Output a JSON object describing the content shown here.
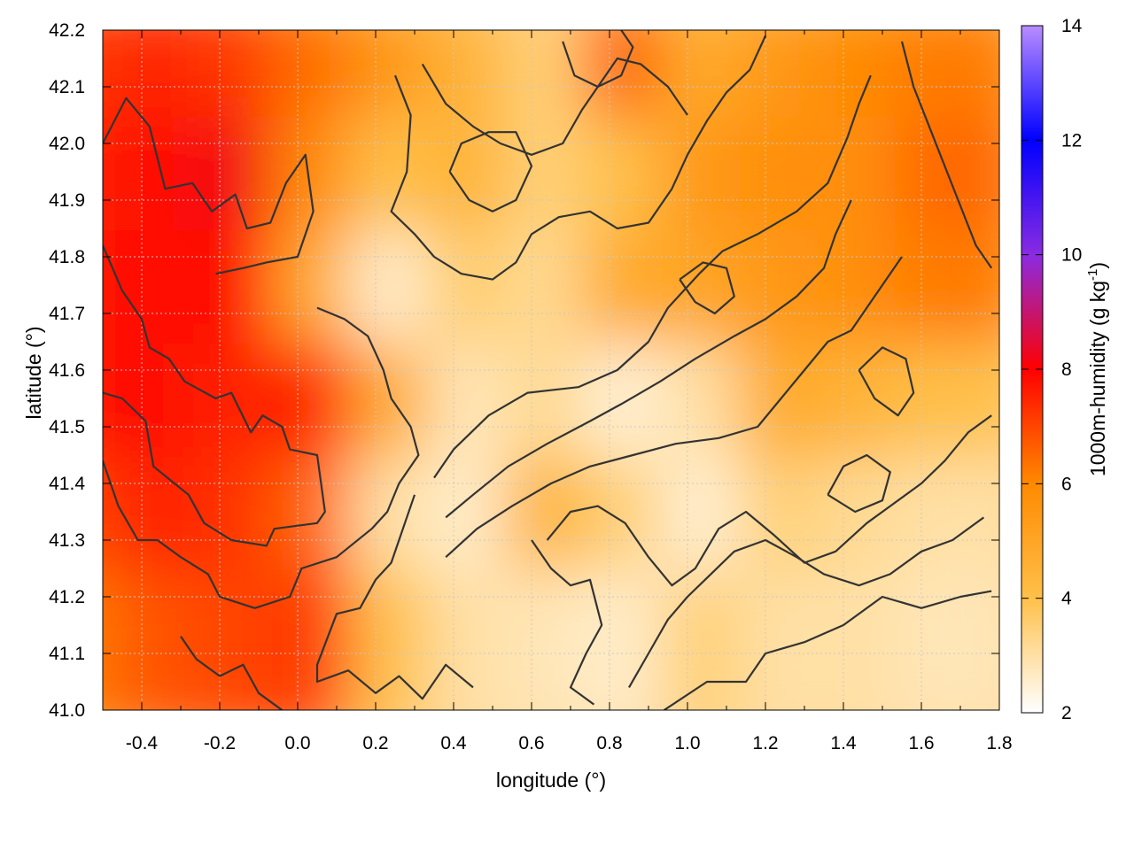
{
  "chart_data": {
    "type": "heatmap",
    "xlabel": "longitude (°)",
    "ylabel": "latitude (°)",
    "xlim": [
      -0.5,
      1.8
    ],
    "ylim": [
      41.0,
      42.2
    ],
    "x_ticks": [
      "-0.4",
      "-0.2",
      "0.0",
      "0.2",
      "0.4",
      "0.6",
      "0.8",
      "1.0",
      "1.2",
      "1.4",
      "1.6",
      "1.8"
    ],
    "x_tick_values": [
      -0.4,
      -0.2,
      0.0,
      0.2,
      0.4,
      0.6,
      0.8,
      1.0,
      1.2,
      1.4,
      1.6,
      1.8
    ],
    "y_ticks": [
      "41.0",
      "41.1",
      "41.2",
      "41.3",
      "41.4",
      "41.5",
      "41.6",
      "41.7",
      "41.8",
      "41.9",
      "42.0",
      "42.1",
      "42.2"
    ],
    "y_tick_values": [
      41.0,
      41.1,
      41.2,
      41.3,
      41.4,
      41.5,
      41.6,
      41.7,
      41.8,
      41.9,
      42.0,
      42.1,
      42.2
    ],
    "grid": true,
    "colorbar": {
      "label": "1000m-humidity (g kg-1)",
      "label_main": "1000m-humidity (g kg",
      "label_sup": "-1",
      "label_end": ")",
      "range": [
        2,
        14
      ],
      "ticks": [
        "2",
        "4",
        "6",
        "8",
        "10",
        "12",
        "14"
      ],
      "tick_values": [
        2,
        4,
        6,
        8,
        10,
        12,
        14
      ],
      "palette": [
        {
          "value": 2,
          "color": "#ffffff"
        },
        {
          "value": 4,
          "color": "#ffc04a"
        },
        {
          "value": 6,
          "color": "#ff8a00"
        },
        {
          "value": 8,
          "color": "#ff0000"
        },
        {
          "value": 10,
          "color": "#8a2be2"
        },
        {
          "value": 12,
          "color": "#0000ff"
        },
        {
          "value": 14,
          "color": "#b98cff"
        }
      ]
    },
    "humidity_field": {
      "x": [
        -0.5,
        -0.3,
        -0.1,
        0.1,
        0.3,
        0.5,
        0.7,
        0.9,
        1.1,
        1.3,
        1.5,
        1.7
      ],
      "y": [
        42.1,
        41.9,
        41.7,
        41.5,
        41.3,
        41.1
      ],
      "values": [
        [
          7.2,
          7.5,
          7.2,
          6.4,
          5.5,
          4.5,
          3.5,
          6.5,
          4.8,
          5.5,
          6.0,
          6.2
        ],
        [
          7.5,
          7.8,
          8.2,
          6.0,
          4.0,
          4.5,
          3.5,
          4.0,
          5.5,
          5.8,
          5.8,
          6.5
        ],
        [
          7.7,
          7.9,
          8.0,
          4.8,
          2.6,
          3.6,
          3.2,
          4.8,
          5.0,
          5.5,
          5.8,
          6.2
        ],
        [
          7.7,
          7.9,
          7.5,
          7.5,
          4.8,
          2.8,
          3.2,
          2.5,
          3.0,
          4.8,
          4.5,
          4.0
        ],
        [
          7.0,
          7.5,
          7.3,
          6.5,
          3.0,
          2.6,
          4.5,
          3.5,
          2.5,
          3.5,
          3.2,
          3.0
        ],
        [
          6.2,
          6.8,
          7.0,
          7.2,
          4.0,
          3.0,
          2.8,
          2.6,
          3.5,
          3.0,
          3.0,
          2.8
        ]
      ]
    },
    "contours": [
      [
        [
          -0.5,
          42.0
        ],
        [
          -0.44,
          42.08
        ],
        [
          -0.38,
          42.03
        ],
        [
          -0.34,
          41.92
        ],
        [
          -0.27,
          41.93
        ],
        [
          -0.22,
          41.88
        ],
        [
          -0.16,
          41.91
        ],
        [
          -0.13,
          41.85
        ],
        [
          -0.07,
          41.86
        ],
        [
          -0.03,
          41.93
        ],
        [
          0.02,
          41.98
        ],
        [
          0.04,
          41.88
        ],
        [
          0.0,
          41.8
        ],
        [
          -0.08,
          41.79
        ],
        [
          -0.14,
          41.78
        ],
        [
          -0.21,
          41.77
        ]
      ],
      [
        [
          -0.5,
          41.82
        ],
        [
          -0.45,
          41.74
        ],
        [
          -0.4,
          41.69
        ],
        [
          -0.38,
          41.64
        ],
        [
          -0.33,
          41.62
        ],
        [
          -0.29,
          41.58
        ],
        [
          -0.21,
          41.55
        ],
        [
          -0.17,
          41.56
        ],
        [
          -0.12,
          41.49
        ],
        [
          -0.09,
          41.52
        ],
        [
          -0.04,
          41.5
        ],
        [
          -0.02,
          41.46
        ],
        [
          0.05,
          41.45
        ],
        [
          0.07,
          41.35
        ],
        [
          0.05,
          41.33
        ],
        [
          -0.06,
          41.32
        ],
        [
          -0.08,
          41.29
        ],
        [
          -0.17,
          41.3
        ],
        [
          -0.24,
          41.33
        ],
        [
          -0.28,
          41.38
        ],
        [
          -0.37,
          41.43
        ],
        [
          -0.39,
          41.51
        ],
        [
          -0.45,
          41.55
        ],
        [
          -0.5,
          41.56
        ]
      ],
      [
        [
          -0.5,
          41.44
        ],
        [
          -0.46,
          41.36
        ],
        [
          -0.41,
          41.3
        ],
        [
          -0.36,
          41.3
        ],
        [
          -0.3,
          41.27
        ],
        [
          -0.23,
          41.24
        ],
        [
          -0.2,
          41.2
        ],
        [
          -0.11,
          41.18
        ],
        [
          -0.02,
          41.2
        ],
        [
          0.01,
          41.25
        ],
        [
          0.1,
          41.27
        ],
        [
          0.19,
          41.32
        ],
        [
          0.23,
          41.35
        ],
        [
          0.26,
          41.4
        ],
        [
          0.31,
          41.45
        ],
        [
          0.29,
          41.5
        ],
        [
          0.24,
          41.55
        ],
        [
          0.22,
          41.6
        ],
        [
          0.18,
          41.66
        ],
        [
          0.12,
          41.69
        ],
        [
          0.05,
          41.71
        ]
      ],
      [
        [
          0.3,
          41.38
        ],
        [
          0.27,
          41.32
        ],
        [
          0.24,
          41.26
        ],
        [
          0.2,
          41.23
        ],
        [
          0.16,
          41.18
        ],
        [
          0.1,
          41.17
        ],
        [
          0.05,
          41.08
        ],
        [
          0.05,
          41.05
        ],
        [
          0.13,
          41.07
        ],
        [
          0.2,
          41.03
        ],
        [
          0.26,
          41.06
        ],
        [
          0.32,
          41.02
        ],
        [
          0.38,
          41.08
        ],
        [
          0.45,
          41.04
        ]
      ],
      [
        [
          0.35,
          41.41
        ],
        [
          0.4,
          41.46
        ],
        [
          0.49,
          41.52
        ],
        [
          0.59,
          41.56
        ],
        [
          0.72,
          41.57
        ],
        [
          0.82,
          41.6
        ],
        [
          0.9,
          41.65
        ],
        [
          0.95,
          41.71
        ],
        [
          1.03,
          41.77
        ],
        [
          1.09,
          41.81
        ],
        [
          1.18,
          41.84
        ],
        [
          1.28,
          41.88
        ],
        [
          1.36,
          41.93
        ],
        [
          1.41,
          42.01
        ],
        [
          1.44,
          42.07
        ],
        [
          1.47,
          42.12
        ]
      ],
      [
        [
          0.38,
          41.34
        ],
        [
          0.45,
          41.38
        ],
        [
          0.54,
          41.43
        ],
        [
          0.64,
          41.47
        ],
        [
          0.75,
          41.51
        ],
        [
          0.83,
          41.54
        ],
        [
          0.93,
          41.58
        ],
        [
          1.02,
          41.62
        ],
        [
          1.12,
          41.66
        ],
        [
          1.2,
          41.69
        ],
        [
          1.28,
          41.73
        ],
        [
          1.35,
          41.78
        ],
        [
          1.38,
          41.84
        ],
        [
          1.42,
          41.9
        ]
      ],
      [
        [
          0.38,
          41.27
        ],
        [
          0.46,
          41.32
        ],
        [
          0.55,
          41.36
        ],
        [
          0.65,
          41.4
        ],
        [
          0.75,
          41.43
        ],
        [
          0.86,
          41.45
        ],
        [
          0.97,
          41.47
        ],
        [
          1.08,
          41.48
        ],
        [
          1.18,
          41.5
        ],
        [
          1.24,
          41.55
        ],
        [
          1.3,
          41.6
        ],
        [
          1.36,
          41.65
        ],
        [
          1.42,
          41.67
        ],
        [
          1.48,
          41.73
        ],
        [
          1.55,
          41.8
        ]
      ],
      [
        [
          0.6,
          41.3
        ],
        [
          0.65,
          41.25
        ],
        [
          0.7,
          41.22
        ],
        [
          0.75,
          41.23
        ],
        [
          0.78,
          41.15
        ],
        [
          0.74,
          41.1
        ],
        [
          0.7,
          41.04
        ],
        [
          0.76,
          41.01
        ]
      ],
      [
        [
          0.64,
          41.3
        ],
        [
          0.7,
          41.35
        ],
        [
          0.77,
          41.36
        ],
        [
          0.84,
          41.33
        ],
        [
          0.9,
          41.27
        ],
        [
          0.96,
          41.22
        ],
        [
          1.02,
          41.25
        ],
        [
          1.08,
          41.32
        ],
        [
          1.15,
          41.35
        ],
        [
          1.22,
          41.31
        ],
        [
          1.3,
          41.26
        ],
        [
          1.38,
          41.28
        ],
        [
          1.46,
          41.33
        ],
        [
          1.52,
          41.36
        ],
        [
          1.6,
          41.4
        ],
        [
          1.66,
          41.44
        ],
        [
          1.72,
          41.49
        ],
        [
          1.78,
          41.52
        ]
      ],
      [
        [
          0.85,
          41.04
        ],
        [
          0.9,
          41.1
        ],
        [
          0.95,
          41.16
        ],
        [
          1.0,
          41.2
        ],
        [
          1.06,
          41.24
        ],
        [
          1.12,
          41.28
        ],
        [
          1.2,
          41.3
        ],
        [
          1.28,
          41.27
        ],
        [
          1.35,
          41.24
        ],
        [
          1.44,
          41.22
        ],
        [
          1.52,
          41.24
        ],
        [
          1.6,
          41.28
        ],
        [
          1.68,
          41.3
        ],
        [
          1.76,
          41.34
        ]
      ],
      [
        [
          0.94,
          41.0
        ],
        [
          1.05,
          41.05
        ],
        [
          1.15,
          41.05
        ],
        [
          1.2,
          41.1
        ],
        [
          1.3,
          41.12
        ],
        [
          1.4,
          41.15
        ],
        [
          1.5,
          41.2
        ],
        [
          1.6,
          41.18
        ],
        [
          1.7,
          41.2
        ],
        [
          1.78,
          41.21
        ]
      ],
      [
        [
          0.25,
          42.12
        ],
        [
          0.29,
          42.05
        ],
        [
          0.28,
          41.95
        ],
        [
          0.24,
          41.88
        ],
        [
          0.3,
          41.84
        ],
        [
          0.35,
          41.8
        ],
        [
          0.42,
          41.77
        ],
        [
          0.5,
          41.76
        ],
        [
          0.56,
          41.79
        ],
        [
          0.6,
          41.84
        ],
        [
          0.67,
          41.87
        ],
        [
          0.75,
          41.88
        ],
        [
          0.82,
          41.85
        ],
        [
          0.9,
          41.86
        ],
        [
          0.96,
          41.92
        ],
        [
          1.0,
          41.98
        ],
        [
          1.05,
          42.04
        ],
        [
          1.1,
          42.09
        ],
        [
          1.16,
          42.13
        ],
        [
          1.2,
          42.19
        ]
      ],
      [
        [
          0.32,
          42.14
        ],
        [
          0.38,
          42.07
        ],
        [
          0.45,
          42.03
        ],
        [
          0.52,
          42.0
        ],
        [
          0.6,
          41.98
        ],
        [
          0.68,
          42.0
        ],
        [
          0.73,
          42.06
        ],
        [
          0.78,
          42.11
        ],
        [
          0.82,
          42.15
        ],
        [
          0.88,
          42.14
        ],
        [
          0.95,
          42.1
        ],
        [
          1.0,
          42.05
        ]
      ],
      [
        [
          0.39,
          41.95
        ],
        [
          0.44,
          41.9
        ],
        [
          0.5,
          41.88
        ],
        [
          0.56,
          41.9
        ],
        [
          0.6,
          41.96
        ],
        [
          0.56,
          42.02
        ],
        [
          0.49,
          42.02
        ],
        [
          0.42,
          42.0
        ],
        [
          0.39,
          41.95
        ]
      ],
      [
        [
          0.68,
          42.18
        ],
        [
          0.71,
          42.12
        ],
        [
          0.77,
          42.1
        ],
        [
          0.83,
          42.12
        ],
        [
          0.86,
          42.17
        ],
        [
          0.83,
          42.2
        ]
      ],
      [
        [
          0.98,
          41.76
        ],
        [
          1.02,
          41.72
        ],
        [
          1.07,
          41.7
        ],
        [
          1.12,
          41.73
        ],
        [
          1.1,
          41.78
        ],
        [
          1.04,
          41.79
        ],
        [
          0.98,
          41.76
        ]
      ],
      [
        [
          1.55,
          42.18
        ],
        [
          1.58,
          42.1
        ],
        [
          1.62,
          42.03
        ],
        [
          1.66,
          41.96
        ],
        [
          1.7,
          41.89
        ],
        [
          1.74,
          41.82
        ],
        [
          1.78,
          41.78
        ]
      ],
      [
        [
          1.44,
          41.6
        ],
        [
          1.48,
          41.55
        ],
        [
          1.54,
          41.52
        ],
        [
          1.58,
          41.56
        ],
        [
          1.56,
          41.62
        ],
        [
          1.5,
          41.64
        ],
        [
          1.44,
          41.6
        ]
      ],
      [
        [
          1.36,
          41.38
        ],
        [
          1.4,
          41.43
        ],
        [
          1.46,
          41.45
        ],
        [
          1.52,
          41.42
        ],
        [
          1.5,
          41.37
        ],
        [
          1.43,
          41.35
        ],
        [
          1.36,
          41.38
        ]
      ],
      [
        [
          -0.3,
          41.13
        ],
        [
          -0.26,
          41.09
        ],
        [
          -0.2,
          41.06
        ],
        [
          -0.14,
          41.08
        ],
        [
          -0.1,
          41.03
        ],
        [
          -0.04,
          41.0
        ]
      ]
    ]
  }
}
